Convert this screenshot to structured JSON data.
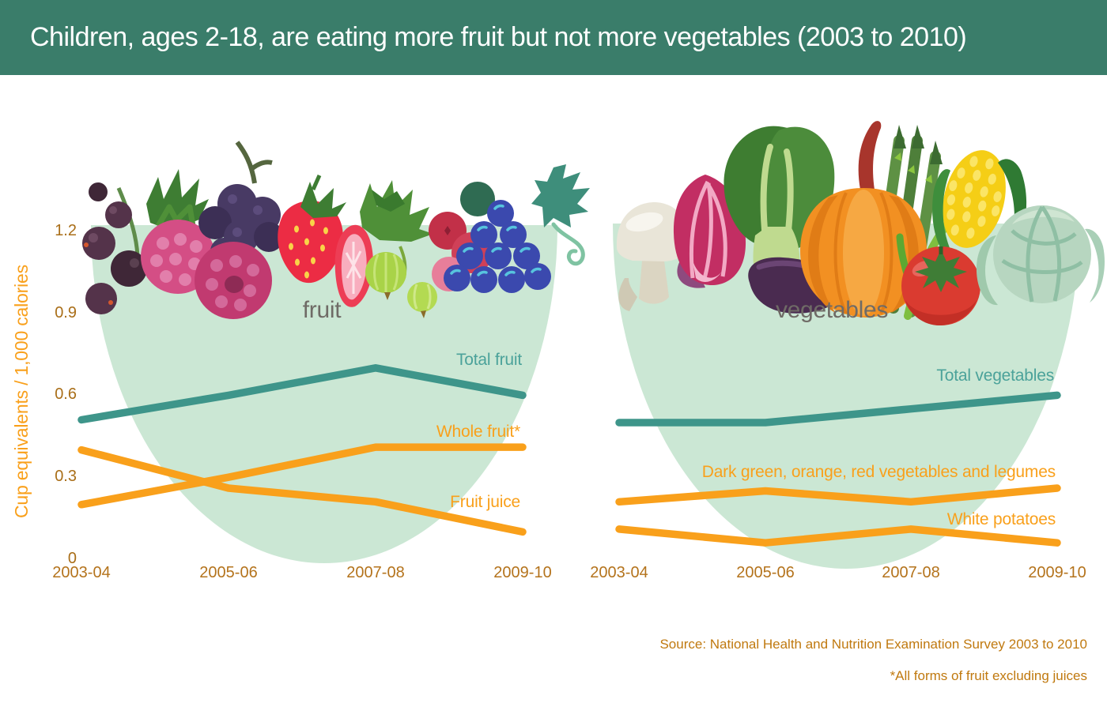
{
  "header": {
    "title": "Children, ages 2-18, are eating more fruit but not more vegetables (2003 to 2010)",
    "bg_color": "#3A7D6A"
  },
  "y_axis": {
    "label": "Cup equivalents / 1,000 calories",
    "ticks": [
      {
        "value": 0.0,
        "label": "0"
      },
      {
        "value": 0.3,
        "label": "0.3"
      },
      {
        "value": 0.6,
        "label": "0.6"
      },
      {
        "value": 0.9,
        "label": "0.9"
      },
      {
        "value": 1.2,
        "label": "1.2"
      }
    ]
  },
  "footer": {
    "source": "Source: National Health and Nutrition Examination Survey 2003 to 2010",
    "footnote": "*All forms of fruit excluding juices"
  },
  "colors": {
    "header_bar": "#3A7D6A",
    "bowl_fill": "#CBE7D4",
    "teal_line": "#3E958A",
    "teal_text": "#4BA29A",
    "orange_line": "#F9A01B",
    "tick_text": "#A96E18",
    "x_label_text": "#B4731C",
    "source_text": "#C0790F",
    "bowl_title_text": "#6F6B66"
  },
  "fruit_icons": [
    "blackcurrants",
    "raspberries",
    "blackberry",
    "strawberry",
    "strawberry-slice",
    "gooseberries",
    "cranberries",
    "grapes",
    "grape-leaf"
  ],
  "vegetable_icons": [
    "mushroom",
    "radicchio",
    "bok-choy",
    "eggplant",
    "pumpkin",
    "asparagus",
    "corn",
    "tomato",
    "cabbage"
  ],
  "chart_data": [
    {
      "type": "line",
      "title": "fruit",
      "categories": [
        "2003-04",
        "2005-06",
        "2007-08",
        "2009-10"
      ],
      "xlabel": "",
      "ylabel": "Cup equivalents / 1,000 calories",
      "ylim": [
        0,
        1.32
      ],
      "yticks": [
        0,
        0.3,
        0.6,
        0.9,
        1.2
      ],
      "grid": false,
      "legend_position": "labels-at-line-ends",
      "series": [
        {
          "name": "Total fruit",
          "color": "#3E958A",
          "values": [
            0.51,
            0.6,
            0.7,
            0.6
          ]
        },
        {
          "name": "Whole fruit*",
          "color": "#F9A01B",
          "values": [
            0.2,
            0.3,
            0.41,
            0.41
          ]
        },
        {
          "name": "Fruit juice",
          "color": "#F9A01B",
          "values": [
            0.4,
            0.26,
            0.21,
            0.1
          ]
        }
      ]
    },
    {
      "type": "line",
      "title": "vegetables",
      "categories": [
        "2003-04",
        "2005-06",
        "2007-08",
        "2009-10"
      ],
      "xlabel": "",
      "ylabel": "Cup equivalents / 1,000 calories",
      "ylim": [
        0,
        1.32
      ],
      "yticks": [],
      "grid": false,
      "legend_position": "labels-at-line-ends",
      "series": [
        {
          "name": "Total vegetables",
          "color": "#3E958A",
          "values": [
            0.5,
            0.5,
            0.55,
            0.6
          ]
        },
        {
          "name": "Dark green, orange, red vegetables and legumes",
          "color": "#F9A01B",
          "values": [
            0.21,
            0.25,
            0.21,
            0.26
          ]
        },
        {
          "name": "White potatoes",
          "color": "#F9A01B",
          "values": [
            0.11,
            0.06,
            0.11,
            0.06
          ]
        }
      ]
    }
  ]
}
